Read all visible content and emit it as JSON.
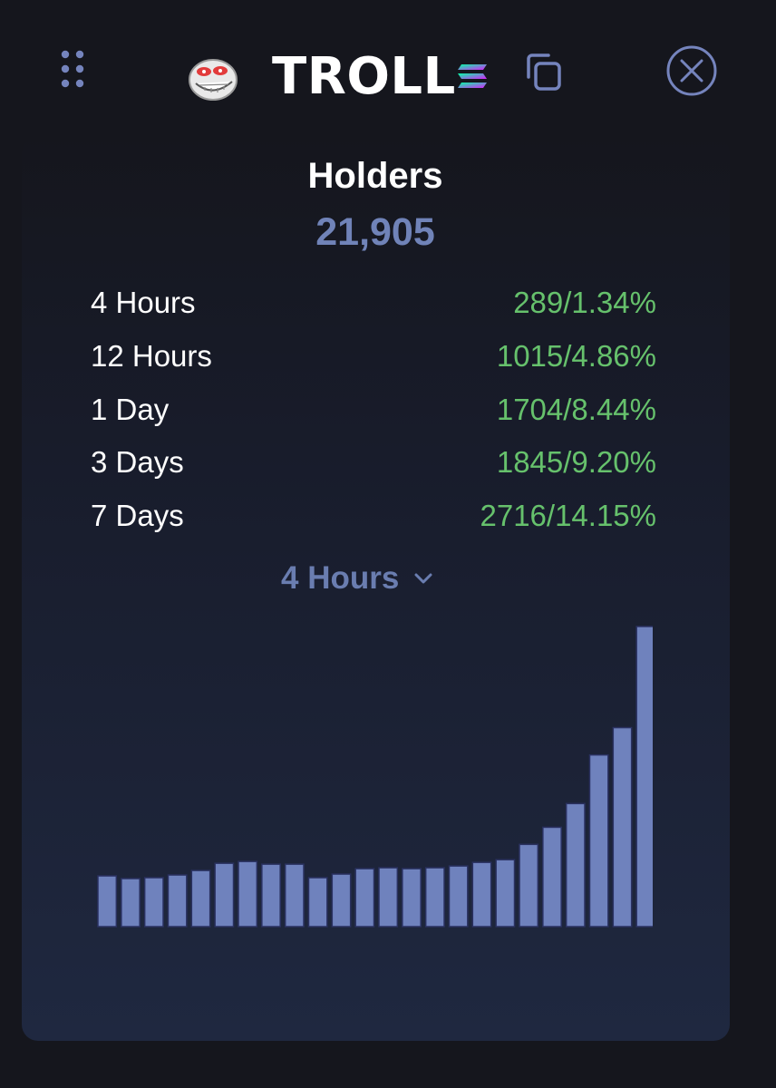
{
  "header": {
    "grip_icon": "drag-grip-icon",
    "avatar_icon": "troll-face-icon",
    "token_name": "TROLL",
    "chain_icon": "solana-logo-icon",
    "copy_icon": "copy-icon",
    "close_icon": "close-circle-icon"
  },
  "holders": {
    "title": "Holders",
    "count": "21,905"
  },
  "stats": [
    {
      "label": "4 Hours",
      "value": "289/1.34%"
    },
    {
      "label": "12 Hours",
      "value": "1015/4.86%"
    },
    {
      "label": "1 Day",
      "value": "1704/8.44%"
    },
    {
      "label": "3 Days",
      "value": "1845/9.20%"
    },
    {
      "label": "7 Days",
      "value": "2716/14.15%"
    }
  ],
  "period_selector": {
    "selected": "4 Hours",
    "icon": "chevron-down-icon"
  },
  "colors": {
    "background": "#15161d",
    "accent": "#7083b8",
    "positive": "#66c16c",
    "bar_fill": "#6f82bd",
    "bar_stroke": "#2a3160"
  },
  "chart_data": {
    "type": "bar",
    "values": [
      16.9,
      16.0,
      16.3,
      17.2,
      18.7,
      21.1,
      21.7,
      20.8,
      20.8,
      16.3,
      17.5,
      19.3,
      19.6,
      19.3,
      19.6,
      20.2,
      21.4,
      22.3,
      27.4,
      33.1,
      41.0,
      57.2,
      66.3,
      100
    ],
    "ylim": [
      0,
      100
    ],
    "grid": false,
    "legend": "none"
  }
}
